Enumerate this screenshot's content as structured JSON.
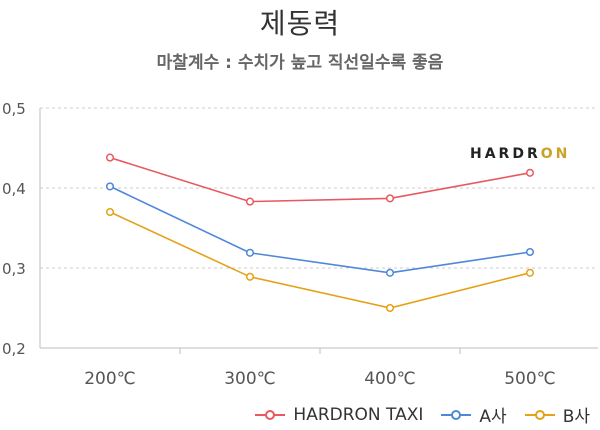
{
  "chart_data": {
    "type": "line",
    "title": "제동력",
    "subtitle": "마찰계수 : 수치가 높고 직선일수록 좋음",
    "categories": [
      "200℃",
      "300℃",
      "400℃",
      "500℃"
    ],
    "ylim": [
      0.2,
      0.5
    ],
    "yticks": [
      "0,2",
      "0,3",
      "0,4",
      "0,5"
    ],
    "grid": true,
    "legend_position": "bottom-right",
    "series": [
      {
        "name": "HARDRON TAXI",
        "color": "#e8595f",
        "values": [
          0.438,
          0.383,
          0.387,
          0.419
        ]
      },
      {
        "name": "A사",
        "color": "#4f87d9",
        "values": [
          0.402,
          0.319,
          0.294,
          0.32
        ]
      },
      {
        "name": "B사",
        "color": "#e5a117",
        "values": [
          0.37,
          0.289,
          0.25,
          0.294
        ]
      }
    ]
  },
  "logo": {
    "part1": "HARDR",
    "part2": "ON",
    "accent_color": "#c9a227"
  }
}
